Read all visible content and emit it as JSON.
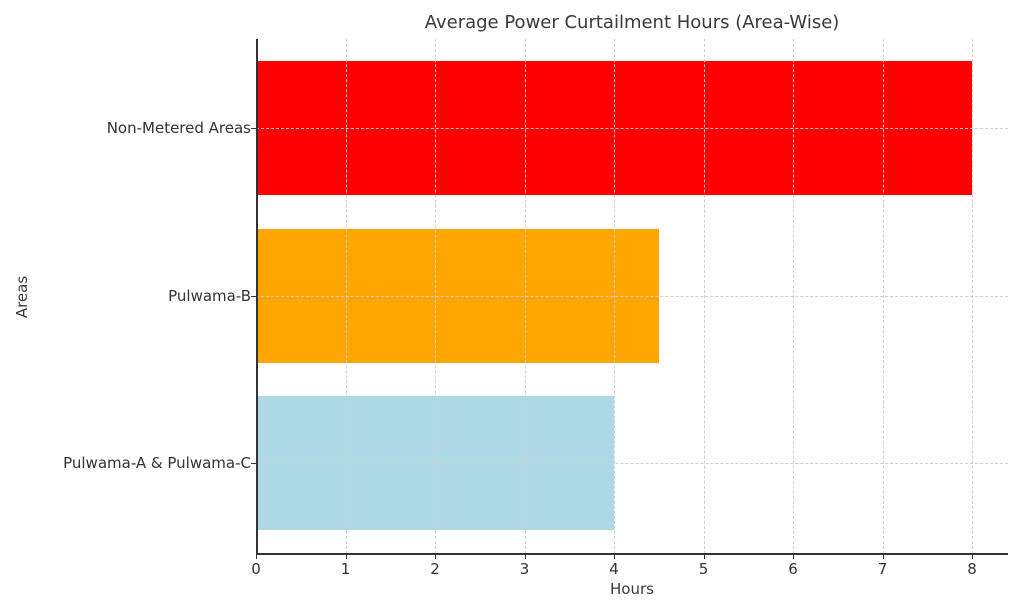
{
  "chart_data": {
    "type": "bar",
    "orientation": "horizontal",
    "title": "Average Power Curtailment Hours (Area-Wise)",
    "xlabel": "Hours",
    "ylabel": "Areas",
    "categories": [
      "Pulwama-A & Pulwama-C",
      "Pulwama-B",
      "Non-Metered Areas"
    ],
    "values": [
      4,
      4.5,
      8
    ],
    "colors": [
      "#add8e6",
      "#ffa500",
      "#ff0000"
    ],
    "xlim": [
      0,
      8.4
    ],
    "xticks": [
      "0",
      "1",
      "2",
      "3",
      "4",
      "5",
      "6",
      "7",
      "8"
    ],
    "grid": true,
    "grid_style": "dashed",
    "legend": null
  }
}
